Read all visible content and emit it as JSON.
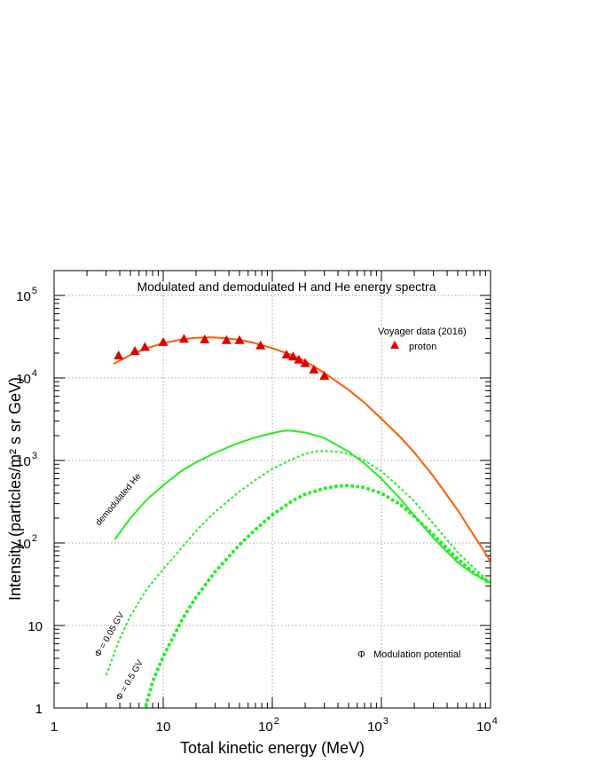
{
  "chart_data": {
    "type": "line",
    "title": "Modulated and demodulated H and He energy spectra",
    "xlabel": "Total kinetic energy (MeV)",
    "ylabel": "Intensity (particles/m² s sr GeV)",
    "xscale": "log",
    "yscale": "log",
    "xlim": [
      1,
      10000
    ],
    "ylim": [
      1,
      200000
    ],
    "grid": true,
    "x_ticks": [
      {
        "value": 1,
        "base": "1",
        "exp": ""
      },
      {
        "value": 10,
        "base": "10",
        "exp": ""
      },
      {
        "value": 100,
        "base": "10",
        "exp": "2"
      },
      {
        "value": 1000,
        "base": "10",
        "exp": "3"
      },
      {
        "value": 10000,
        "base": "10",
        "exp": "4"
      }
    ],
    "y_ticks": [
      {
        "value": 1,
        "base": "1",
        "exp": ""
      },
      {
        "value": 10,
        "base": "10",
        "exp": ""
      },
      {
        "value": 100,
        "base": "10",
        "exp": "2"
      },
      {
        "value": 1000,
        "base": "10",
        "exp": "3"
      },
      {
        "value": 10000,
        "base": "10",
        "exp": "4"
      },
      {
        "value": 100000,
        "base": "10",
        "exp": "5"
      }
    ],
    "legend": {
      "title": "Voyager data (2016)",
      "entries": [
        {
          "label": "proton",
          "marker": "triangle",
          "color": "#e00000"
        }
      ],
      "placement": "top-right"
    },
    "phi_note": {
      "symbol": "Φ",
      "text": "Modulation potential"
    },
    "series": [
      {
        "name": "proton",
        "kind": "markers",
        "color": "#e00000",
        "x": [
          3.9,
          5.5,
          6.8,
          10,
          15.5,
          24,
          38,
          50,
          78,
          135,
          155,
          175,
          200,
          240,
          300
        ],
        "y": [
          18500,
          21000,
          23500,
          27000,
          29500,
          29000,
          28500,
          28500,
          24500,
          19000,
          18000,
          16500,
          15000,
          12500,
          10500
        ]
      },
      {
        "kind": "line",
        "color": "#ff5a00",
        "dash": "solid",
        "x": [
          3.5,
          5,
          7,
          10,
          15,
          20,
          25,
          30,
          40,
          50,
          70,
          100,
          150,
          200,
          300,
          500,
          700,
          1000,
          1500,
          2000,
          3000,
          5000,
          7000,
          10000
        ],
        "y": [
          14800,
          19000,
          22800,
          26400,
          29500,
          30600,
          31000,
          30900,
          30000,
          29000,
          26300,
          23000,
          19000,
          16000,
          11500,
          7200,
          5000,
          3200,
          1900,
          1250,
          640,
          250,
          125,
          60
        ]
      },
      {
        "name": "demodulated He",
        "kind": "line",
        "color": "#22ee22",
        "dash": "solid",
        "x": [
          3.6,
          5,
          7,
          10,
          15,
          20,
          30,
          40,
          50,
          70,
          100,
          130,
          150,
          200,
          300,
          500,
          700,
          1000,
          1500,
          2000,
          3000,
          5000,
          7000,
          10000
        ],
        "y": [
          110,
          200,
          330,
          500,
          760,
          950,
          1240,
          1460,
          1640,
          1900,
          2150,
          2300,
          2290,
          2180,
          1870,
          1280,
          920,
          600,
          340,
          215,
          115,
          58,
          42,
          33
        ]
      },
      {
        "name": "Φ = 0.05 GV",
        "kind": "line",
        "color": "#22ee22",
        "dash": "dashed",
        "x": [
          3,
          4,
          5,
          7,
          10,
          15,
          20,
          30,
          50,
          70,
          100,
          150,
          200,
          250,
          300,
          400,
          500,
          700,
          1000,
          1500,
          2000,
          3000,
          5000,
          7000,
          10000
        ],
        "y": [
          2.5,
          7,
          13,
          27,
          48,
          90,
          140,
          240,
          420,
          580,
          790,
          1030,
          1200,
          1290,
          1300,
          1270,
          1200,
          1000,
          740,
          460,
          320,
          170,
          77,
          50,
          33
        ]
      },
      {
        "name": "Φ = 0.5 GV",
        "kind": "line",
        "color": "#22ee22",
        "dash": "dotted",
        "x": [
          6.2,
          7,
          8,
          10,
          15,
          20,
          30,
          50,
          70,
          100,
          150,
          200,
          300,
          400,
          500,
          700,
          1000,
          1500,
          2000,
          3000,
          5000,
          7000,
          10000
        ],
        "y": [
          0.6,
          1.1,
          2.1,
          4.2,
          12,
          22,
          45,
          95,
          145,
          220,
          320,
          390,
          460,
          490,
          495,
          470,
          400,
          290,
          210,
          125,
          64,
          44,
          32
        ]
      }
    ]
  }
}
